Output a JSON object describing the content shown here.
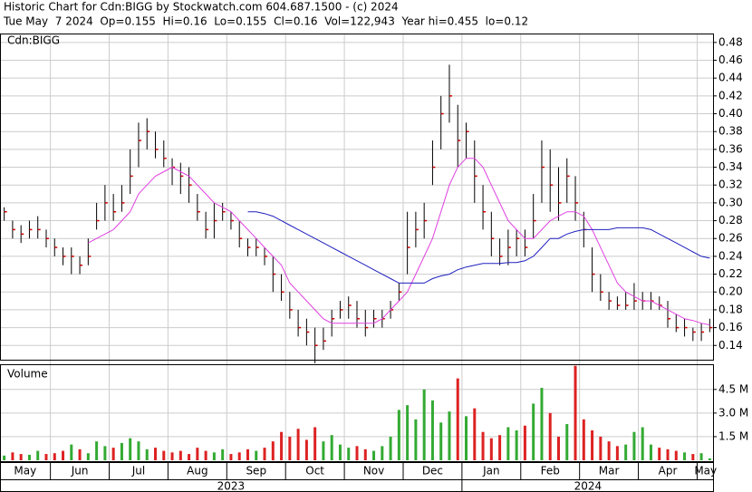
{
  "chart_data": [
    {
      "type": "ohlc",
      "title": "Historic Chart for Cdn:BIGG by Stockwatch.com 604.687.1500 - (c) 2024",
      "subtitle": "Tue May  7 2024  Op=0.155  Hi=0.16  Lo=0.155  Cl=0.16  Vol=122,943  Year hi=0.455  lo=0.12",
      "label": "Cdn:BIGG",
      "categories": [
        "May",
        null,
        null,
        null,
        null,
        null,
        "Jun",
        null,
        null,
        null,
        null,
        null,
        null,
        "Jul",
        null,
        null,
        null,
        null,
        null,
        null,
        "Aug",
        null,
        null,
        null,
        null,
        null,
        null,
        "Sep",
        null,
        null,
        null,
        null,
        null,
        null,
        "Oct",
        null,
        null,
        null,
        null,
        null,
        null,
        "Nov",
        null,
        null,
        null,
        null,
        null,
        null,
        "Dec",
        null,
        null,
        null,
        null,
        null,
        null,
        "Jan",
        null,
        null,
        null,
        null,
        null,
        null,
        "Feb",
        null,
        null,
        null,
        null,
        null,
        null,
        "Mar",
        null,
        null,
        null,
        null,
        null,
        null,
        "Apr",
        null,
        null,
        null,
        null,
        null,
        null,
        "May",
        null
      ],
      "years": [
        "2023",
        null,
        null,
        null,
        null,
        null,
        null,
        null,
        null,
        null,
        null,
        null,
        null,
        null,
        null,
        null,
        null,
        null,
        null,
        null,
        null,
        null,
        null,
        null,
        null,
        null,
        null,
        null,
        null,
        null,
        null,
        null,
        null,
        null,
        null,
        null,
        null,
        null,
        null,
        null,
        null,
        null,
        null,
        null,
        null,
        null,
        null,
        null,
        null,
        null,
        null,
        null,
        null,
        null,
        null,
        "2024",
        null,
        null,
        null,
        null,
        null,
        null,
        null,
        null,
        null,
        null,
        null,
        null,
        null,
        null,
        null,
        null,
        null,
        null,
        null,
        null,
        null,
        null,
        null,
        null,
        null,
        null,
        null,
        null,
        null
      ],
      "high": [
        0.295,
        0.28,
        0.275,
        0.28,
        0.285,
        0.27,
        0.26,
        0.25,
        0.25,
        0.24,
        0.26,
        0.3,
        0.32,
        0.31,
        0.32,
        0.36,
        0.39,
        0.395,
        0.38,
        0.37,
        0.35,
        0.345,
        0.34,
        0.31,
        0.29,
        0.3,
        0.3,
        0.29,
        0.28,
        0.26,
        0.26,
        0.25,
        0.24,
        0.22,
        0.2,
        0.18,
        0.17,
        0.16,
        0.16,
        0.18,
        0.19,
        0.195,
        0.19,
        0.18,
        0.18,
        0.18,
        0.19,
        0.21,
        0.29,
        0.29,
        0.3,
        0.37,
        0.42,
        0.455,
        0.41,
        0.39,
        0.37,
        0.32,
        0.29,
        0.26,
        0.27,
        0.27,
        0.27,
        0.31,
        0.37,
        0.36,
        0.34,
        0.35,
        0.33,
        0.29,
        0.25,
        0.22,
        0.2,
        0.195,
        0.2,
        0.21,
        0.2,
        0.2,
        0.195,
        0.19,
        0.175,
        0.17,
        0.16,
        0.165,
        0.17
      ],
      "low": [
        0.28,
        0.26,
        0.255,
        0.26,
        0.26,
        0.25,
        0.24,
        0.23,
        0.22,
        0.22,
        0.23,
        0.27,
        0.28,
        0.28,
        0.29,
        0.31,
        0.34,
        0.36,
        0.35,
        0.34,
        0.32,
        0.31,
        0.3,
        0.28,
        0.26,
        0.26,
        0.28,
        0.27,
        0.25,
        0.24,
        0.24,
        0.23,
        0.2,
        0.19,
        0.17,
        0.15,
        0.14,
        0.12,
        0.135,
        0.15,
        0.17,
        0.17,
        0.16,
        0.15,
        0.16,
        0.16,
        0.17,
        0.19,
        0.22,
        0.25,
        0.26,
        0.32,
        0.36,
        0.39,
        0.34,
        0.35,
        0.3,
        0.27,
        0.24,
        0.23,
        0.23,
        0.24,
        0.24,
        0.26,
        0.3,
        0.29,
        0.28,
        0.3,
        0.28,
        0.25,
        0.2,
        0.19,
        0.18,
        0.18,
        0.18,
        0.18,
        0.18,
        0.18,
        0.18,
        0.16,
        0.155,
        0.15,
        0.145,
        0.145,
        0.155
      ],
      "close": [
        0.29,
        0.27,
        0.265,
        0.27,
        0.27,
        0.26,
        0.25,
        0.24,
        0.24,
        0.23,
        0.24,
        0.28,
        0.3,
        0.29,
        0.3,
        0.33,
        0.37,
        0.38,
        0.36,
        0.35,
        0.34,
        0.33,
        0.32,
        0.29,
        0.27,
        0.28,
        0.29,
        0.28,
        0.26,
        0.25,
        0.25,
        0.24,
        0.22,
        0.2,
        0.18,
        0.16,
        0.155,
        0.14,
        0.145,
        0.17,
        0.18,
        0.185,
        0.17,
        0.16,
        0.17,
        0.17,
        0.18,
        0.2,
        0.25,
        0.27,
        0.28,
        0.34,
        0.4,
        0.42,
        0.37,
        0.38,
        0.33,
        0.29,
        0.26,
        0.24,
        0.25,
        0.26,
        0.25,
        0.28,
        0.34,
        0.32,
        0.3,
        0.33,
        0.3,
        0.27,
        0.22,
        0.2,
        0.19,
        0.185,
        0.185,
        0.19,
        0.19,
        0.19,
        0.185,
        0.17,
        0.16,
        0.16,
        0.155,
        0.155,
        0.16
      ],
      "bar_color": "#000000",
      "close_color": "#cc0000",
      "moving_averages": [
        {
          "color": "#e040e0",
          "values": [
            null,
            null,
            null,
            null,
            null,
            null,
            null,
            null,
            null,
            null,
            0.255,
            0.26,
            0.265,
            0.27,
            0.28,
            0.29,
            0.31,
            0.32,
            0.33,
            0.335,
            0.34,
            0.335,
            0.33,
            0.32,
            0.31,
            0.3,
            0.295,
            0.29,
            0.28,
            0.27,
            0.26,
            0.25,
            0.24,
            0.23,
            0.21,
            0.2,
            0.19,
            0.18,
            0.17,
            0.165,
            0.165,
            0.165,
            0.165,
            0.165,
            0.165,
            0.17,
            0.18,
            0.19,
            0.2,
            0.22,
            0.24,
            0.26,
            0.29,
            0.32,
            0.34,
            0.35,
            0.35,
            0.34,
            0.32,
            0.3,
            0.28,
            0.27,
            0.26,
            0.26,
            0.27,
            0.28,
            0.285,
            0.29,
            0.29,
            0.285,
            0.27,
            0.25,
            0.23,
            0.21,
            0.2,
            0.195,
            0.19,
            0.19,
            0.185,
            0.18,
            0.175,
            0.17,
            0.168,
            0.165,
            0.163
          ]
        },
        {
          "color": "#2020c0",
          "values": [
            null,
            null,
            null,
            null,
            null,
            null,
            null,
            null,
            null,
            null,
            null,
            null,
            null,
            null,
            null,
            null,
            null,
            null,
            null,
            null,
            null,
            null,
            null,
            null,
            null,
            null,
            null,
            null,
            null,
            0.29,
            0.29,
            0.288,
            0.285,
            0.28,
            0.275,
            0.27,
            0.265,
            0.26,
            0.255,
            0.25,
            0.245,
            0.24,
            0.235,
            0.23,
            0.225,
            0.22,
            0.215,
            0.21,
            0.21,
            0.21,
            0.21,
            0.215,
            0.218,
            0.22,
            0.225,
            0.228,
            0.23,
            0.232,
            0.232,
            0.232,
            0.233,
            0.233,
            0.235,
            0.24,
            0.25,
            0.26,
            0.26,
            0.265,
            0.268,
            0.27,
            0.27,
            0.27,
            0.27,
            0.272,
            0.272,
            0.272,
            0.272,
            0.27,
            0.265,
            0.26,
            0.255,
            0.25,
            0.245,
            0.24,
            0.238
          ]
        }
      ],
      "ylim": [
        0.124,
        0.49
      ],
      "yticks": [
        0.14,
        0.16,
        0.18,
        {
          "value": 0.2,
          "label": "0.20"
        },
        0.22,
        0.24,
        0.26,
        0.28,
        {
          "value": 0.3,
          "label": "0.30"
        },
        0.32,
        0.34,
        0.36,
        0.38,
        {
          "value": 0.4,
          "label": "0.40"
        },
        0.42,
        0.44,
        0.46,
        0.48
      ],
      "grid": true
    },
    {
      "type": "bar",
      "title": "Volume",
      "values": [
        300000,
        500000,
        400000,
        350000,
        600000,
        400000,
        450000,
        600000,
        1000000,
        700000,
        450000,
        1200000,
        900000,
        800000,
        1100000,
        1400000,
        1200000,
        700000,
        800000,
        600000,
        500000,
        600000,
        400000,
        800000,
        600000,
        500000,
        700000,
        400000,
        500000,
        700000,
        600000,
        800000,
        1200000,
        1800000,
        1500000,
        2000000,
        1300000,
        2100000,
        1200000,
        1600000,
        1000000,
        800000,
        900000,
        700000,
        600000,
        900000,
        1500000,
        3200000,
        3500000,
        2600000,
        4500000,
        3800000,
        2400000,
        3100000,
        5200000,
        2800000,
        3300000,
        1800000,
        1400000,
        1600000,
        2100000,
        1900000,
        2200000,
        3600000,
        4600000,
        3000000,
        1500000,
        2300000,
        6000000,
        2600000,
        1900000,
        1500000,
        1200000,
        900000,
        1000000,
        1800000,
        2100000,
        1000000,
        800000,
        700000,
        600000,
        500000,
        400000,
        450000,
        122943
      ],
      "up_color": "#33aa33",
      "down_color": "#dd2222",
      "ylim": [
        0,
        6100000
      ],
      "yticks": [
        {
          "value": 1500000,
          "label": "1.5 M"
        },
        {
          "value": 3000000,
          "label": "3.0 M"
        },
        {
          "value": 4500000,
          "label": "4.5 M"
        }
      ],
      "grid": true
    }
  ]
}
